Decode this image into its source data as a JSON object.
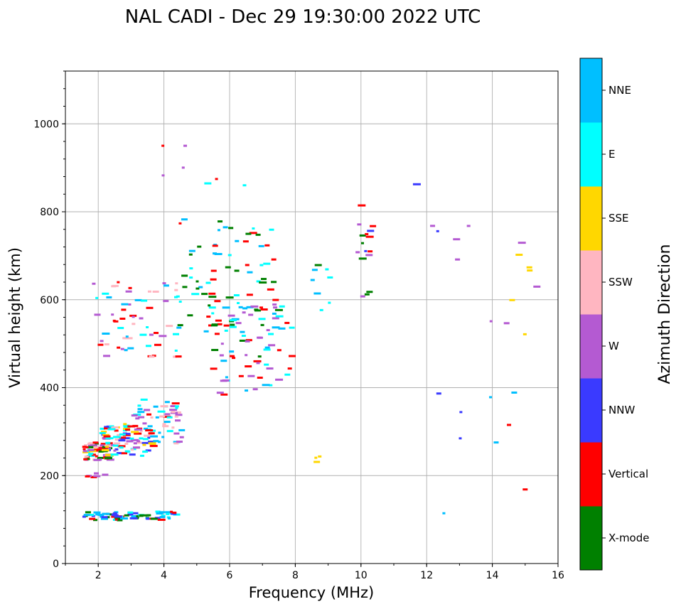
{
  "chart_data": {
    "type": "scatter",
    "title": "NAL CADI - Dec 29 19:30:00 2022 UTC",
    "xlabel": "Frequency (MHz)",
    "ylabel": "Virtual height (km)",
    "xlim": [
      1,
      16
    ],
    "ylim": [
      0,
      1120
    ],
    "xticks": [
      2,
      4,
      6,
      8,
      10,
      12,
      14,
      16
    ],
    "yticks": [
      0,
      200,
      400,
      600,
      800,
      1000
    ],
    "grid": true,
    "colorbar": {
      "title": "Azimuth Direction",
      "categories": [
        {
          "name": "X-mode",
          "color": "#008000"
        },
        {
          "name": "Vertical",
          "color": "#ff0000"
        },
        {
          "name": "NNW",
          "color": "#3a3aff"
        },
        {
          "name": "W",
          "color": "#b45ad2"
        },
        {
          "name": "SSW",
          "color": "#ffb6c1"
        },
        {
          "name": "SSE",
          "color": "#ffd700"
        },
        {
          "name": "E",
          "color": "#00ffff"
        },
        {
          "name": "NNE",
          "color": "#00bfff"
        }
      ]
    },
    "clusters": [
      {
        "mode": "E",
        "x": [
          1.5,
          4.3
        ],
        "y": [
          98,
          118
        ],
        "cats": [
          "Vertical",
          "NNW",
          "E",
          "NNE",
          "X-mode"
        ],
        "n": 70,
        "seed": 1
      },
      {
        "mode": "E",
        "x": [
          1.5,
          2.2
        ],
        "y": [
          195,
          205
        ],
        "cats": [
          "Vertical",
          "W"
        ],
        "n": 6,
        "seed": 2
      },
      {
        "mode": "F1",
        "x": [
          1.5,
          2.3
        ],
        "y": [
          235,
          275
        ],
        "cats": [
          "Vertical",
          "SSE",
          "SSW",
          "W",
          "X-mode",
          "E"
        ],
        "n": 70,
        "seed": 3
      },
      {
        "mode": "F",
        "x": [
          2.0,
          3.6
        ],
        "y": [
          245,
          320
        ],
        "cats": [
          "Vertical",
          "SSW",
          "W",
          "SSE",
          "NNW",
          "E"
        ],
        "n": 90,
        "seed": 4
      },
      {
        "mode": "F",
        "x": [
          3.0,
          4.5
        ],
        "y": [
          265,
          380
        ],
        "cats": [
          "Vertical",
          "SSW",
          "E",
          "NNE",
          "W"
        ],
        "n": 60,
        "seed": 5
      },
      {
        "mode": "F",
        "x": [
          1.8,
          4.4
        ],
        "y": [
          470,
          640
        ],
        "cats": [
          "Vertical",
          "SSW",
          "NNE",
          "W",
          "E"
        ],
        "n": 60,
        "seed": 6
      },
      {
        "mode": "F",
        "x": [
          4.3,
          7.3
        ],
        "y": [
          520,
          790
        ],
        "cats": [
          "X-mode",
          "E",
          "NNE",
          "Vertical"
        ],
        "n": 80,
        "seed": 7
      },
      {
        "mode": "F",
        "x": [
          5.4,
          7.9
        ],
        "y": [
          380,
          600
        ],
        "cats": [
          "X-mode",
          "Vertical",
          "NNE",
          "W",
          "E"
        ],
        "n": 70,
        "seed": 8
      },
      {
        "mode": "F",
        "x": [
          8.3,
          9.0
        ],
        "y": [
          560,
          680
        ],
        "cats": [
          "X-mode",
          "E",
          "NNE"
        ],
        "n": 8,
        "seed": 9
      },
      {
        "mode": "F",
        "x": [
          9.8,
          10.3
        ],
        "y": [
          600,
          815
        ],
        "cats": [
          "X-mode",
          "Vertical",
          "NNW",
          "W"
        ],
        "n": 16,
        "seed": 10
      },
      {
        "mode": "F",
        "x": [
          10.6,
          13.5
        ],
        "y": [
          680,
          975
        ],
        "cats": [
          "W",
          "NNW"
        ],
        "n": 6,
        "seed": 11
      },
      {
        "mode": "F",
        "x": [
          13.9,
          15.3
        ],
        "y": [
          500,
          730
        ],
        "cats": [
          "SSE",
          "W"
        ],
        "n": 9,
        "seed": 12
      },
      {
        "mode": "F",
        "x": [
          12.0,
          15.3
        ],
        "y": [
          85,
          415
        ],
        "cats": [
          "Vertical",
          "W",
          "NNE",
          "SSW",
          "NNW"
        ],
        "n": 9,
        "seed": 13
      },
      {
        "mode": "F",
        "x": [
          8.5,
          8.7
        ],
        "y": [
          220,
          250
        ],
        "cats": [
          "Vertical",
          "SSE"
        ],
        "n": 3,
        "seed": 14
      },
      {
        "mode": "F",
        "x": [
          3.9,
          6.5
        ],
        "y": [
          850,
          955
        ],
        "cats": [
          "Vertical",
          "X-mode",
          "E",
          "W"
        ],
        "n": 7,
        "seed": 15
      }
    ]
  }
}
